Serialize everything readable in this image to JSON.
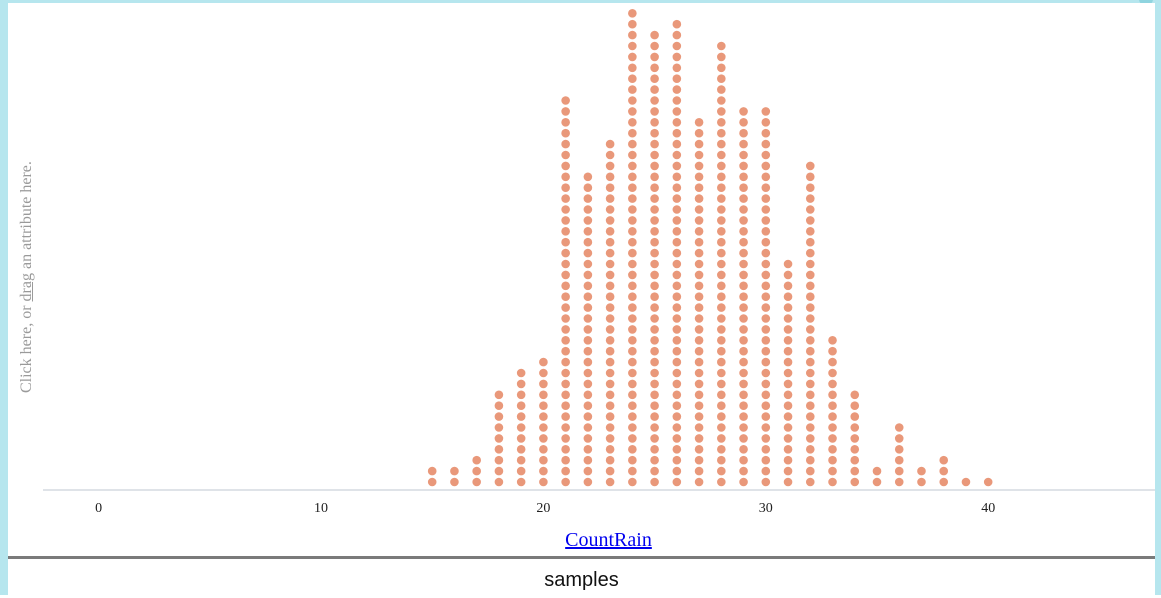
{
  "graph": {
    "y_prompt_prefix": "Click here, or ",
    "y_prompt_link": "drag",
    "y_prompt_suffix": " an attribute here.",
    "x_attribute": "CountRain",
    "title": "samples"
  },
  "colors": {
    "dot": "#e9987a",
    "axis": "#dfe3e8",
    "frame": "#b6e6ee"
  },
  "chart_data": {
    "type": "scatter",
    "subtype": "dot plot",
    "xlabel": "CountRain",
    "xlim": [
      -2.5,
      47.5
    ],
    "x_ticks": [
      0,
      10,
      20,
      30,
      40
    ],
    "x": [
      15,
      16,
      17,
      18,
      19,
      20,
      21,
      22,
      23,
      24,
      25,
      26,
      27,
      28,
      29,
      30,
      31,
      32,
      33,
      34,
      35,
      36,
      37,
      38,
      39,
      40
    ],
    "counts": [
      2,
      2,
      3,
      9,
      11,
      12,
      36,
      29,
      32,
      44,
      42,
      43,
      34,
      41,
      35,
      35,
      21,
      30,
      14,
      9,
      2,
      6,
      2,
      3,
      1,
      1
    ]
  }
}
